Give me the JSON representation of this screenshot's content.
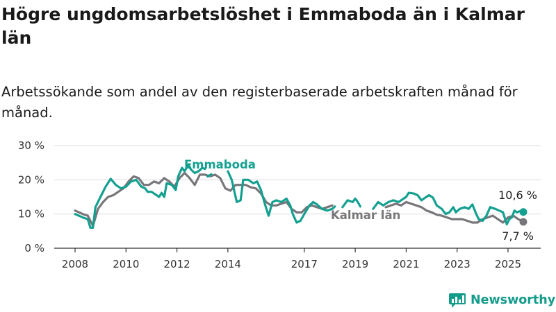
{
  "title": "Högre ungdomsarbetslöshet i Emmaboda än i Kalmar län",
  "subtitle": "Arbetssökande som andel av den registerbaserade arbetskraften månad för månad.",
  "brand": {
    "name": "Newsworthy",
    "color": "#149c8b",
    "icon": "bar-chart-logo-icon"
  },
  "colors": {
    "emmaboda": "#14a090",
    "kalmar": "#78767a",
    "grid": "#dcdcdc",
    "axis": "#333333"
  },
  "chart_data": {
    "type": "line",
    "y_ticks": [
      "0 %",
      "10 %",
      "20 %",
      "30 %"
    ],
    "y_tick_values": [
      0,
      10,
      20,
      30
    ],
    "ylim": [
      0,
      30
    ],
    "x_ticks": [
      "2008",
      "2010",
      "2012",
      "2014",
      "2017",
      "2019",
      "2021",
      "2023",
      "2025"
    ],
    "x_tick_values": [
      2008,
      2010,
      2012,
      2014,
      2017,
      2019,
      2021,
      2023,
      2025
    ],
    "xlim": [
      2008,
      2025.6
    ],
    "grid": true,
    "series": [
      {
        "name": "Emmaboda",
        "color": "#14a090",
        "end_label": "10,6 %",
        "segments": [
          [
            [
              2008.0,
              10.0
            ],
            [
              2008.3,
              9.0
            ],
            [
              2008.5,
              8.5
            ],
            [
              2008.6,
              6.0
            ],
            [
              2008.7,
              6.0
            ],
            [
              2008.8,
              12.0
            ],
            [
              2009.0,
              15.0
            ],
            [
              2009.2,
              18.0
            ],
            [
              2009.4,
              20.3
            ],
            [
              2009.6,
              18.5
            ],
            [
              2009.8,
              17.5
            ],
            [
              2010.0,
              18.0
            ],
            [
              2010.2,
              19.5
            ],
            [
              2010.4,
              20.0
            ],
            [
              2010.6,
              18.0
            ],
            [
              2010.75,
              17.5
            ],
            [
              2010.85,
              16.5
            ],
            [
              2011.0,
              16.5
            ],
            [
              2011.1,
              16.0
            ],
            [
              2011.2,
              15.5
            ],
            [
              2011.3,
              15.0
            ],
            [
              2011.4,
              16.2
            ],
            [
              2011.5,
              15.0
            ],
            [
              2011.6,
              19.0
            ],
            [
              2011.8,
              18.5
            ],
            [
              2011.95,
              17.0
            ],
            [
              2012.05,
              21.0
            ],
            [
              2012.2,
              23.5
            ],
            [
              2012.3,
              22.5
            ],
            [
              2012.45,
              24.5
            ],
            [
              2012.55,
              23.0
            ],
            [
              2012.7,
              22.0
            ],
            [
              2012.85,
              22.5
            ],
            [
              2013.0,
              23.5
            ],
            [
              2013.1,
              23.2
            ]
          ],
          [
            [
              2013.2,
              21.0
            ],
            [
              2013.35,
              21.6
            ]
          ],
          [
            [
              2014.0,
              22.5
            ],
            [
              2014.15,
              20.0
            ],
            [
              2014.35,
              13.5
            ],
            [
              2014.5,
              14.0
            ],
            [
              2014.6,
              20.0
            ],
            [
              2014.8,
              20.0
            ],
            [
              2015.0,
              19.0
            ],
            [
              2015.15,
              19.5
            ],
            [
              2015.3,
              17.0
            ],
            [
              2015.45,
              13.0
            ],
            [
              2015.6,
              9.5
            ],
            [
              2015.75,
              13.5
            ],
            [
              2015.9,
              14.0
            ],
            [
              2016.1,
              13.5
            ],
            [
              2016.3,
              14.5
            ],
            [
              2016.45,
              12.5
            ],
            [
              2016.55,
              10.0
            ],
            [
              2016.7,
              7.5
            ],
            [
              2016.85,
              8.0
            ],
            [
              2017.0,
              10.0
            ],
            [
              2017.2,
              12.5
            ],
            [
              2017.35,
              13.5
            ],
            [
              2017.5,
              12.8
            ],
            [
              2017.7,
              11.5
            ],
            [
              2017.9,
              11.0
            ],
            [
              2018.1,
              11.5
            ],
            [
              2018.2,
              12.2
            ]
          ],
          [
            [
              2018.5,
              12.0
            ],
            [
              2018.7,
              14.0
            ],
            [
              2018.9,
              13.5
            ],
            [
              2019.0,
              14.5
            ],
            [
              2019.1,
              13.5
            ],
            [
              2019.2,
              12.2
            ]
          ],
          [
            [
              2019.7,
              11.5
            ],
            [
              2019.9,
              13.5
            ],
            [
              2020.1,
              12.5
            ],
            [
              2020.3,
              13.5
            ],
            [
              2020.5,
              14.0
            ],
            [
              2020.7,
              13.5
            ],
            [
              2020.9,
              14.5
            ],
            [
              2021.0,
              15.0
            ],
            [
              2021.1,
              16.2
            ],
            [
              2021.3,
              16.0
            ],
            [
              2021.45,
              15.5
            ],
            [
              2021.6,
              14.0
            ],
            [
              2021.75,
              14.8
            ],
            [
              2021.9,
              15.5
            ],
            [
              2022.05,
              14.8
            ],
            [
              2022.2,
              12.5
            ],
            [
              2022.4,
              11.5
            ],
            [
              2022.55,
              10.0
            ],
            [
              2022.7,
              10.5
            ],
            [
              2022.85,
              12.0
            ],
            [
              2022.95,
              10.5
            ],
            [
              2023.1,
              11.5
            ],
            [
              2023.3,
              12.0
            ],
            [
              2023.45,
              11.5
            ],
            [
              2023.6,
              12.8
            ],
            [
              2023.75,
              10.0
            ],
            [
              2023.85,
              8.5
            ],
            [
              2024.0,
              8.0
            ],
            [
              2024.15,
              9.5
            ],
            [
              2024.3,
              12.0
            ],
            [
              2024.5,
              11.5
            ],
            [
              2024.65,
              11.0
            ],
            [
              2024.8,
              10.5
            ],
            [
              2024.95,
              7.0
            ],
            [
              2025.05,
              8.5
            ],
            [
              2025.15,
              9.0
            ],
            [
              2025.25,
              11.0
            ],
            [
              2025.35,
              10.5
            ],
            [
              2025.45,
              10.8
            ],
            [
              2025.6,
              10.6
            ]
          ]
        ]
      },
      {
        "name": "Kalmar län",
        "color": "#78767a",
        "end_label": "7,7 %",
        "segments": [
          [
            [
              2008.0,
              11.0
            ],
            [
              2008.3,
              10.0
            ],
            [
              2008.5,
              9.5
            ],
            [
              2008.7,
              6.5
            ],
            [
              2008.9,
              11.5
            ],
            [
              2009.1,
              13.5
            ],
            [
              2009.3,
              15.0
            ],
            [
              2009.5,
              15.5
            ],
            [
              2009.7,
              16.5
            ],
            [
              2009.9,
              17.5
            ],
            [
              2010.1,
              19.5
            ],
            [
              2010.3,
              21.0
            ],
            [
              2010.5,
              20.5
            ],
            [
              2010.7,
              18.5
            ],
            [
              2010.9,
              18.5
            ],
            [
              2011.1,
              19.5
            ],
            [
              2011.3,
              19.0
            ],
            [
              2011.5,
              20.5
            ],
            [
              2011.7,
              19.5
            ],
            [
              2011.9,
              18.0
            ],
            [
              2012.1,
              20.5
            ],
            [
              2012.3,
              22.0
            ],
            [
              2012.5,
              20.5
            ],
            [
              2012.7,
              18.5
            ],
            [
              2012.9,
              21.5
            ],
            [
              2013.1,
              21.5
            ],
            [
              2013.3,
              21.0
            ],
            [
              2013.5,
              21.5
            ],
            [
              2013.7,
              20.5
            ],
            [
              2013.9,
              17.5
            ],
            [
              2014.1,
              16.8
            ],
            [
              2014.3,
              18.5
            ],
            [
              2014.5,
              18.5
            ],
            [
              2014.7,
              18.5
            ],
            [
              2014.9,
              17.8
            ],
            [
              2015.1,
              17.5
            ],
            [
              2015.3,
              16.0
            ],
            [
              2015.5,
              13.5
            ],
            [
              2015.7,
              12.5
            ],
            [
              2015.9,
              12.5
            ],
            [
              2016.1,
              13.0
            ],
            [
              2016.3,
              13.5
            ],
            [
              2016.5,
              11.5
            ],
            [
              2016.7,
              10.5
            ],
            [
              2016.9,
              10.5
            ],
            [
              2017.1,
              12.0
            ],
            [
              2017.3,
              12.5
            ],
            [
              2017.5,
              12.0
            ],
            [
              2017.7,
              11.5
            ],
            [
              2017.9,
              12.0
            ],
            [
              2018.1,
              12.5
            ]
          ],
          [
            [
              2020.2,
              12.0
            ],
            [
              2020.4,
              12.5
            ],
            [
              2020.6,
              13.0
            ],
            [
              2020.8,
              12.5
            ],
            [
              2021.0,
              13.5
            ],
            [
              2021.2,
              13.0
            ],
            [
              2021.4,
              12.5
            ],
            [
              2021.6,
              12.0
            ],
            [
              2021.8,
              11.0
            ],
            [
              2022.0,
              10.5
            ],
            [
              2022.2,
              9.8
            ],
            [
              2022.4,
              9.5
            ],
            [
              2022.6,
              9.0
            ],
            [
              2022.8,
              8.5
            ],
            [
              2023.0,
              8.5
            ],
            [
              2023.2,
              8.5
            ],
            [
              2023.4,
              8.0
            ],
            [
              2023.6,
              7.5
            ],
            [
              2023.8,
              7.5
            ],
            [
              2024.0,
              8.5
            ],
            [
              2024.2,
              9.0
            ],
            [
              2024.4,
              9.5
            ],
            [
              2024.6,
              8.5
            ],
            [
              2024.8,
              7.5
            ],
            [
              2025.0,
              9.0
            ],
            [
              2025.2,
              9.5
            ],
            [
              2025.4,
              8.5
            ],
            [
              2025.6,
              7.7
            ]
          ]
        ]
      }
    ]
  }
}
